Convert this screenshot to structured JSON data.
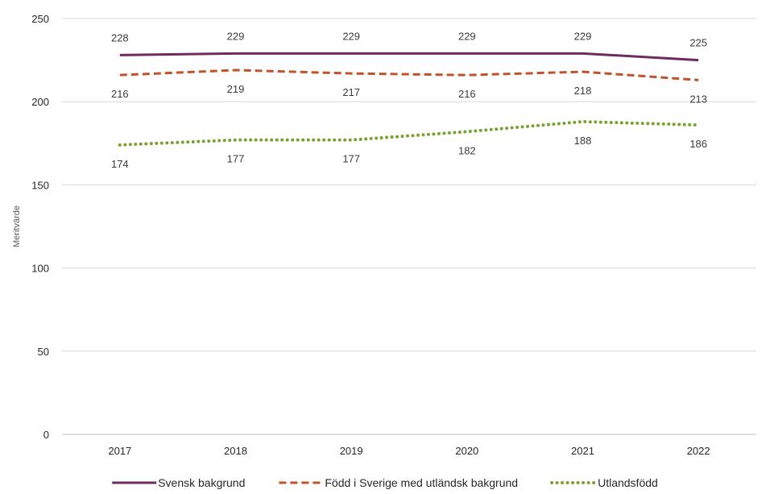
{
  "chart_data": {
    "type": "line",
    "title": "",
    "xlabel": "",
    "ylabel": "Meritvärde",
    "ylim": [
      0,
      250
    ],
    "yticks": [
      0,
      50,
      100,
      150,
      200,
      250
    ],
    "grid": true,
    "legend_position": "bottom",
    "categories": [
      "2017",
      "2018",
      "2019",
      "2020",
      "2021",
      "2022"
    ],
    "series": [
      {
        "name": "Svensk bakgrund",
        "values": [
          228,
          229,
          229,
          229,
          229,
          225
        ],
        "color": "#6e2b62",
        "line_style": "solid",
        "label_position": "above"
      },
      {
        "name": "Född i Sverige med utländsk bakgrund",
        "values": [
          216,
          219,
          217,
          216,
          218,
          213
        ],
        "color": "#c0532b",
        "line_style": "dashed",
        "label_position": "below"
      },
      {
        "name": "Utlandsfödd",
        "values": [
          174,
          177,
          177,
          182,
          188,
          186
        ],
        "color": "#78a22f",
        "line_style": "dotted",
        "label_position": "below"
      }
    ]
  }
}
